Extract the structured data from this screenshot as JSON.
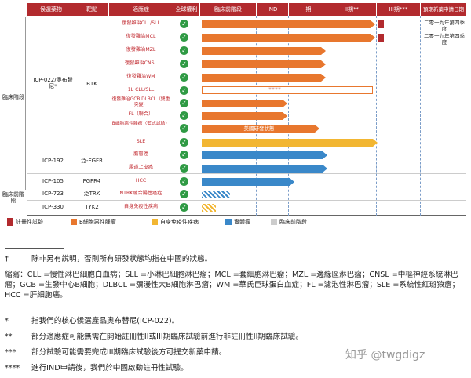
{
  "headers": [
    "候選藥物",
    "靶點",
    "適應症",
    "全球權利",
    "臨床前階段",
    "IND",
    "I期",
    "II期**",
    "III期***",
    "預期新藥申請日期"
  ],
  "groups": {
    "clinical": "臨床階段",
    "preclinical": "臨床前階段"
  },
  "drugs": [
    {
      "name": "ICP-022/奧布替尼*",
      "target": "BTK"
    },
    {
      "name": "ICP-192",
      "target": "泛-FGFR"
    },
    {
      "name": "ICP-105",
      "target": "FGFR4"
    },
    {
      "name": "ICP-723",
      "target": "泛TRK"
    },
    {
      "name": "ICP-330",
      "target": "TYK2"
    }
  ],
  "indications": [
    "復發難治CLL/SLL",
    "復發難治MCL",
    "復發難治MZL",
    "復發難治CNSL",
    "復發難治WM",
    "1L CLL/SLL",
    "復發難治GCB DLBCL（雙重突變）",
    "FL（聯合）",
    "B細胞惡性腫瘤（藍式試驗）",
    "SLE",
    "膽管癌",
    "尿道上皮癌",
    "HCC",
    "NTRK融合陽性癌症",
    "自身免疫性疾病"
  ],
  "nda_dates": [
    "二零一九年第四季度",
    "二零一九年第四季度"
  ],
  "stars": "****",
  "us_trial": "美國研發狀態",
  "legend": [
    "註冊性試驗",
    "B細胞惡性腫瘤",
    "自身免疫性疾病",
    "實體瘤",
    "臨床前階段"
  ],
  "colors": {
    "red": "#b22a2e",
    "orange": "#e8772e",
    "yellow": "#f2b632",
    "blue": "#3a88c9",
    "green": "#2f9a44"
  },
  "notes": [
    {
      "mark": "†",
      "text": "除非另有說明，否則所有研發狀態均指在中國的狀態。"
    },
    {
      "mark": "",
      "text": "縮寫：CLL =慢性淋巴細胞白血病；SLL =小淋巴細胞淋巴瘤；MCL =套細胞淋巴瘤；MZL =邊緣區淋巴瘤；CNSL =中樞神經系統淋巴瘤；GCB =生發中心B細胞；DLBCL =瀰漫性大B細胞淋巴瘤；WM =華氏巨球蛋白血症；FL =濾泡性淋巴瘤；SLE =系統性紅斑狼瘡；HCC =肝細胞癌。"
    },
    {
      "mark": "*",
      "text": "指我們的核心候選產品奧布替尼(ICP-022)。"
    },
    {
      "mark": "**",
      "text": "部分適應症可能無需在開始註冊性II或III期臨床試驗前進行非註冊性II期臨床試驗。"
    },
    {
      "mark": "***",
      "text": "部分試驗可能需要完成III期臨床試驗後方可提交新藥申請。"
    },
    {
      "mark": "****",
      "text": "進行IND申請後，我們於中國啟動註冊性試驗。"
    }
  ],
  "watermark": "知乎 @twgdigz"
}
